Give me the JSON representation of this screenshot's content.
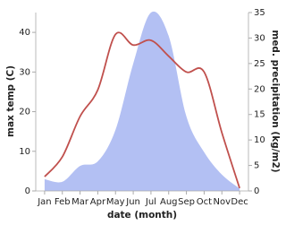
{
  "chart_data": {
    "type": "line-area",
    "x_label": "date (month)",
    "y_label": "max temp (C)",
    "y2_label": "med. precipitation (kg/m2)",
    "categories": [
      "Jan",
      "Feb",
      "Mar",
      "Apr",
      "May",
      "Jun",
      "Jul",
      "Aug",
      "Sep",
      "Oct",
      "Nov",
      "Dec"
    ],
    "series": [
      {
        "name": "max temp",
        "kind": "line",
        "color": "#c0504d",
        "values": [
          3.6,
          8.6,
          18.8,
          25.5,
          39.5,
          36.8,
          38,
          34,
          30,
          30,
          14.7,
          0.7
        ]
      },
      {
        "name": "med. precipitation",
        "kind": "area",
        "axis": "y2",
        "color": "#b3c0f3",
        "values": [
          2.3,
          1.8,
          4.9,
          5.8,
          12,
          25,
          35,
          30.4,
          14.6,
          7.6,
          3.2,
          0.5
        ]
      }
    ],
    "ylim": [
      0,
      45
    ],
    "yticks": [
      0,
      10,
      20,
      30,
      40
    ],
    "y2lim": [
      0,
      35
    ],
    "y2ticks": [
      0,
      5,
      10,
      15,
      20,
      25,
      30,
      35
    ]
  }
}
